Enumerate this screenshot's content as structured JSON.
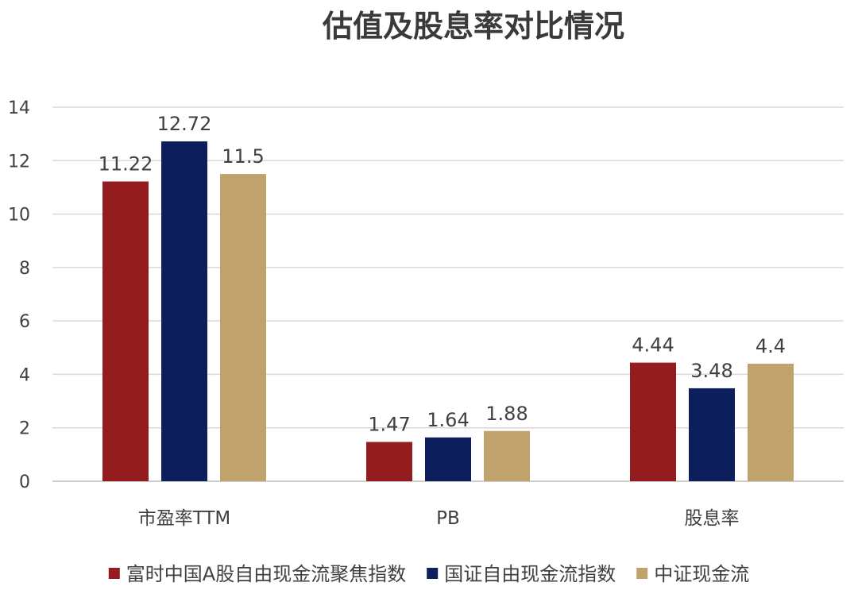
{
  "chart_data": {
    "type": "bar",
    "title": "估值及股息率对比情况",
    "categories": [
      "市盈率TTM",
      "PB",
      "股息率"
    ],
    "series": [
      {
        "name": "富时中国A股自由现金流聚焦指数",
        "values": [
          11.22,
          1.47,
          4.44
        ],
        "labels": [
          "11.22",
          "1.47",
          "4.44"
        ],
        "color": "#941c1f"
      },
      {
        "name": "国证自由现金流指数",
        "values": [
          12.72,
          1.64,
          3.48
        ],
        "labels": [
          "12.72",
          "1.64",
          "3.48"
        ],
        "color": "#0c1f5c"
      },
      {
        "name": "中证现金流",
        "values": [
          11.5,
          1.88,
          4.4
        ],
        "labels": [
          "11.5",
          "1.88",
          "4.4"
        ],
        "color": "#c0a36c"
      }
    ],
    "yticks": [
      "0",
      "2",
      "4",
      "6",
      "8",
      "10",
      "12",
      "14"
    ],
    "ylim": [
      0,
      14
    ],
    "grid": true,
    "legend": "bottom"
  }
}
